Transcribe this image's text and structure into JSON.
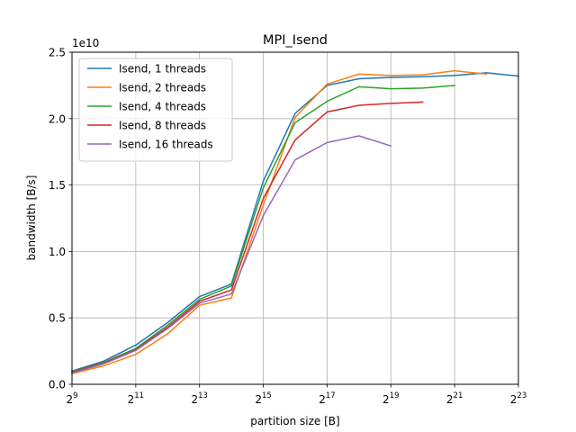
{
  "chart_data": {
    "type": "line",
    "title": "MPI_Isend",
    "xlabel": "partition size [B]",
    "ylabel": "bandwidth [B/s]",
    "x_scale": "log2",
    "xlim": [
      512,
      8388608
    ],
    "ylim": [
      0,
      25000000000
    ],
    "y_offset_text": "1e10",
    "grid": true,
    "legend_position": "upper-left",
    "x_ticks": [
      {
        "base": "2",
        "exp": "9",
        "value": 512
      },
      {
        "base": "2",
        "exp": "11",
        "value": 2048
      },
      {
        "base": "2",
        "exp": "13",
        "value": 8192
      },
      {
        "base": "2",
        "exp": "15",
        "value": 32768
      },
      {
        "base": "2",
        "exp": "17",
        "value": 131072
      },
      {
        "base": "2",
        "exp": "19",
        "value": 524288
      },
      {
        "base": "2",
        "exp": "21",
        "value": 2097152
      },
      {
        "base": "2",
        "exp": "23",
        "value": 8388608
      }
    ],
    "y_ticks": [
      {
        "label": "0.0",
        "value": 0
      },
      {
        "label": "0.5",
        "value": 5000000000
      },
      {
        "label": "1.0",
        "value": 10000000000
      },
      {
        "label": "1.5",
        "value": 15000000000
      },
      {
        "label": "2.0",
        "value": 20000000000
      },
      {
        "label": "2.5",
        "value": 25000000000
      }
    ],
    "series": [
      {
        "name": "Isend, 1 threads",
        "color": "#1f77b4",
        "x": [
          512,
          1024,
          2048,
          4096,
          8192,
          16384,
          32768,
          65536,
          131072,
          262144,
          524288,
          1048576,
          2097152,
          4194304,
          8388608
        ],
        "y": [
          1000000000,
          1750000000,
          2950000000,
          4650000000,
          6600000000,
          7550000000,
          15300000000,
          20400000000,
          22500000000,
          23000000000,
          23100000000,
          23150000000,
          23250000000,
          23450000000,
          23200000000
        ]
      },
      {
        "name": "Isend, 2 threads",
        "color": "#ff7f0e",
        "x": [
          512,
          1024,
          2048,
          4096,
          8192,
          16384,
          32768,
          65536,
          131072,
          262144,
          524288,
          1048576,
          2097152,
          4194304
        ],
        "y": [
          800000000,
          1400000000,
          2250000000,
          3800000000,
          5950000000,
          6500000000,
          13500000000,
          20100000000,
          22600000000,
          23350000000,
          23250000000,
          23300000000,
          23600000000,
          23350000000
        ]
      },
      {
        "name": "Isend, 4 threads",
        "color": "#2ca02c",
        "x": [
          512,
          1024,
          2048,
          4096,
          8192,
          16384,
          32768,
          65536,
          131072,
          262144,
          524288,
          1048576,
          2097152
        ],
        "y": [
          950000000,
          1650000000,
          2700000000,
          4450000000,
          6400000000,
          7400000000,
          14800000000,
          19700000000,
          21300000000,
          22400000000,
          22250000000,
          22300000000,
          22500000000
        ]
      },
      {
        "name": "Isend, 8 threads",
        "color": "#d62728",
        "x": [
          512,
          1024,
          2048,
          4096,
          8192,
          16384,
          32768,
          65536,
          131072,
          262144,
          524288,
          1048576
        ],
        "y": [
          900000000,
          1600000000,
          2600000000,
          4300000000,
          6250000000,
          7100000000,
          14000000000,
          18400000000,
          20500000000,
          21000000000,
          21150000000,
          21250000000
        ]
      },
      {
        "name": "Isend, 16 threads",
        "color": "#9467bd",
        "x": [
          512,
          1024,
          2048,
          4096,
          8192,
          16384,
          32768,
          65536,
          131072,
          262144,
          524288
        ],
        "y": [
          850000000,
          1550000000,
          2550000000,
          4200000000,
          6100000000,
          6800000000,
          12700000000,
          16900000000,
          18200000000,
          18700000000,
          17950000000
        ]
      }
    ]
  }
}
